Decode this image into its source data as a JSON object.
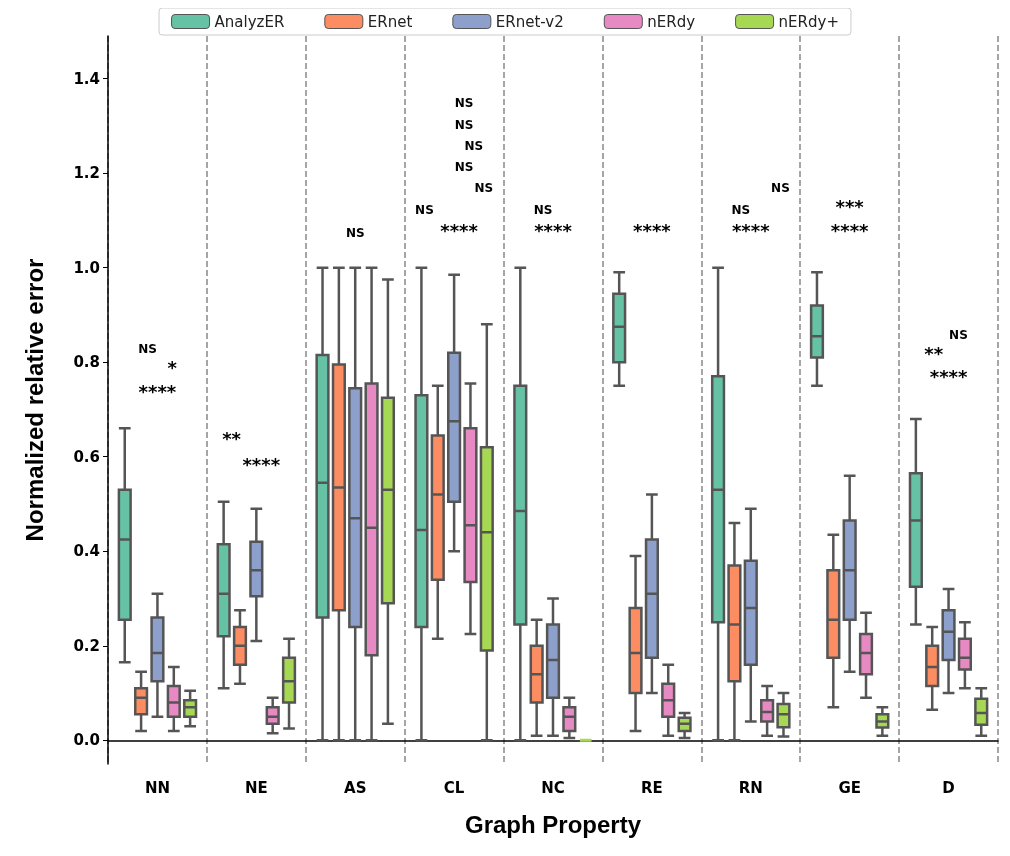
{
  "chart_data": {
    "type": "box",
    "xlabel": "Graph Property",
    "ylabel": "Normalized relative error",
    "categories": [
      "NN",
      "NE",
      "AS",
      "CL",
      "NC",
      "RE",
      "RN",
      "GE",
      "D"
    ],
    "ylim": [
      -0.05,
      1.49
    ],
    "yticks": [
      {
        "value": 0,
        "label": "0.0"
      },
      {
        "value": 0.2,
        "label": "0.2"
      },
      {
        "value": 0.4,
        "label": "0.4"
      },
      {
        "value": 0.6,
        "label": "0.6"
      },
      {
        "value": 0.8,
        "label": "0.8"
      },
      {
        "value": 1,
        "label": "1.0"
      },
      {
        "value": 1.2,
        "label": "1.2"
      },
      {
        "value": 1.4,
        "label": "1.4"
      }
    ],
    "grid": "x",
    "legend": "top",
    "series": [
      {
        "name": "AnalyzER",
        "color": "#66c2a5",
        "boxes": [
          {
            "low": 0.165,
            "q1": 0.255,
            "median": 0.425,
            "q3": 0.53,
            "high": 0.66
          },
          {
            "low": 0.11,
            "q1": 0.22,
            "median": 0.31,
            "q3": 0.415,
            "high": 0.505
          },
          {
            "low": 0,
            "q1": 0.26,
            "median": 0.545,
            "q3": 0.815,
            "high": 1
          },
          {
            "low": 0,
            "q1": 0.24,
            "median": 0.445,
            "q3": 0.73,
            "high": 1
          },
          {
            "low": 0,
            "q1": 0.245,
            "median": 0.485,
            "q3": 0.75,
            "high": 1
          },
          {
            "low": 0.75,
            "q1": 0.8,
            "median": 0.875,
            "q3": 0.945,
            "high": 0.99
          },
          {
            "low": 0,
            "q1": 0.25,
            "median": 0.53,
            "q3": 0.77,
            "high": 1
          },
          {
            "low": 0.75,
            "q1": 0.81,
            "median": 0.855,
            "q3": 0.92,
            "high": 0.99
          },
          {
            "low": 0.245,
            "q1": 0.325,
            "median": 0.465,
            "q3": 0.565,
            "high": 0.68
          }
        ]
      },
      {
        "name": "ERnet",
        "color": "#fc8d62",
        "boxes": [
          {
            "low": 0.02,
            "q1": 0.055,
            "median": 0.09,
            "q3": 0.11,
            "high": 0.145
          },
          {
            "low": 0.12,
            "q1": 0.16,
            "median": 0.2,
            "q3": 0.24,
            "high": 0.275
          },
          {
            "low": 0,
            "q1": 0.275,
            "median": 0.535,
            "q3": 0.795,
            "high": 1
          },
          {
            "low": 0.215,
            "q1": 0.34,
            "median": 0.52,
            "q3": 0.645,
            "high": 0.75
          },
          {
            "low": 0.01,
            "q1": 0.08,
            "median": 0.14,
            "q3": 0.2,
            "high": 0.255
          },
          {
            "low": 0.02,
            "q1": 0.1,
            "median": 0.185,
            "q3": 0.28,
            "high": 0.39
          },
          {
            "low": 0,
            "q1": 0.125,
            "median": 0.245,
            "q3": 0.37,
            "high": 0.46
          },
          {
            "low": 0.07,
            "q1": 0.175,
            "median": 0.255,
            "q3": 0.36,
            "high": 0.435
          },
          {
            "low": 0.065,
            "q1": 0.115,
            "median": 0.155,
            "q3": 0.2,
            "high": 0.24
          }
        ]
      },
      {
        "name": "ERnet-v2",
        "color": "#8da0cb",
        "boxes": [
          {
            "low": 0.05,
            "q1": 0.125,
            "median": 0.185,
            "q3": 0.26,
            "high": 0.31
          },
          {
            "low": 0.21,
            "q1": 0.305,
            "median": 0.36,
            "q3": 0.42,
            "high": 0.49
          },
          {
            "low": 0,
            "q1": 0.24,
            "median": 0.47,
            "q3": 0.745,
            "high": 1
          },
          {
            "low": 0.4,
            "q1": 0.505,
            "median": 0.675,
            "q3": 0.82,
            "high": 0.985
          },
          {
            "low": 0.01,
            "q1": 0.09,
            "median": 0.17,
            "q3": 0.245,
            "high": 0.3
          },
          {
            "low": 0.1,
            "q1": 0.175,
            "median": 0.31,
            "q3": 0.425,
            "high": 0.52
          },
          {
            "low": 0.04,
            "q1": 0.16,
            "median": 0.28,
            "q3": 0.38,
            "high": 0.49
          },
          {
            "low": 0.145,
            "q1": 0.255,
            "median": 0.36,
            "q3": 0.465,
            "high": 0.56
          },
          {
            "low": 0.1,
            "q1": 0.17,
            "median": 0.23,
            "q3": 0.275,
            "high": 0.32
          }
        ]
      },
      {
        "name": "nERdy",
        "color": "#e78ac3",
        "boxes": [
          {
            "low": 0.02,
            "q1": 0.05,
            "median": 0.08,
            "q3": 0.115,
            "high": 0.155
          },
          {
            "low": 0.015,
            "q1": 0.035,
            "median": 0.05,
            "q3": 0.07,
            "high": 0.09
          },
          {
            "low": 0,
            "q1": 0.18,
            "median": 0.45,
            "q3": 0.755,
            "high": 1
          },
          {
            "low": 0.225,
            "q1": 0.335,
            "median": 0.455,
            "q3": 0.66,
            "high": 0.755
          },
          {
            "low": 0.005,
            "q1": 0.02,
            "median": 0.05,
            "q3": 0.07,
            "high": 0.09
          },
          {
            "low": 0.01,
            "q1": 0.05,
            "median": 0.085,
            "q3": 0.12,
            "high": 0.16
          },
          {
            "low": 0.01,
            "q1": 0.04,
            "median": 0.06,
            "q3": 0.085,
            "high": 0.115
          },
          {
            "low": 0.09,
            "q1": 0.14,
            "median": 0.185,
            "q3": 0.225,
            "high": 0.27
          },
          {
            "low": 0.11,
            "q1": 0.15,
            "median": 0.175,
            "q3": 0.215,
            "high": 0.25
          }
        ]
      },
      {
        "name": "nERdy+",
        "color": "#a6d854",
        "boxes": [
          {
            "low": 0.03,
            "q1": 0.05,
            "median": 0.07,
            "q3": 0.085,
            "high": 0.105
          },
          {
            "low": 0.025,
            "q1": 0.08,
            "median": 0.125,
            "q3": 0.175,
            "high": 0.215
          },
          {
            "low": 0.035,
            "q1": 0.29,
            "median": 0.53,
            "q3": 0.725,
            "high": 0.975
          },
          {
            "low": 0,
            "q1": 0.19,
            "median": 0.44,
            "q3": 0.62,
            "high": 0.88
          },
          {
            "low": 0,
            "q1": 0,
            "median": 0,
            "q3": 0,
            "high": 0
          },
          {
            "low": 0.005,
            "q1": 0.02,
            "median": 0.035,
            "q3": 0.048,
            "high": 0.058
          },
          {
            "low": 0.008,
            "q1": 0.028,
            "median": 0.055,
            "q3": 0.077,
            "high": 0.1
          },
          {
            "low": 0.01,
            "q1": 0.027,
            "median": 0.04,
            "q3": 0.055,
            "high": 0.07
          },
          {
            "low": 0.01,
            "q1": 0.033,
            "median": 0.058,
            "q3": 0.088,
            "high": 0.11
          }
        ]
      }
    ],
    "annotations": [
      "NS",
      "*",
      "****",
      "**",
      "****",
      "NS",
      "NS",
      "NS",
      "NS",
      "NS",
      "NS",
      "NS",
      "****",
      "NS",
      "****",
      "****",
      "NS",
      "NS",
      "****",
      "***",
      "****",
      "NS",
      "**",
      "****"
    ]
  }
}
